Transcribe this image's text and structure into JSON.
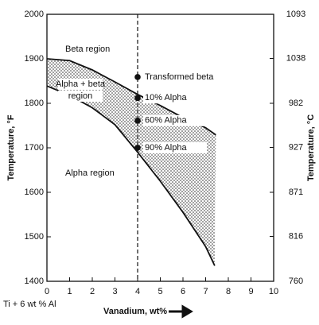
{
  "chart_data": {
    "type": "line",
    "xlabel": "Vanadium, wt%",
    "ylabel": "Temperature, °F",
    "y2label": "Temperature, °C",
    "note": "Ti + 6 wt % Al",
    "xlim": [
      0,
      10
    ],
    "xticks": [
      0,
      1,
      2,
      3,
      4,
      5,
      6,
      7,
      8,
      9,
      10
    ],
    "ylim": [
      1400,
      2000
    ],
    "yticks": [
      1400,
      1500,
      1600,
      1700,
      1800,
      1900,
      2000
    ],
    "y2lim": [
      760,
      1093
    ],
    "y2ticks": [
      760,
      816,
      871,
      927,
      982,
      1038,
      1093
    ],
    "color": "#111111",
    "series": [
      {
        "x": [
          0,
          1,
          2,
          3,
          4,
          5,
          6,
          7,
          7.45
        ],
        "values": [
          1900,
          1896,
          1875,
          1848,
          1820,
          1795,
          1768,
          1745,
          1729
        ]
      },
      {
        "x": [
          0,
          1,
          2,
          3,
          4,
          5,
          6,
          7,
          7.4
        ],
        "values": [
          1839,
          1818,
          1790,
          1752,
          1690,
          1625,
          1555,
          1478,
          1435
        ]
      }
    ],
    "vline": 4,
    "points": {
      "x": [
        4,
        4,
        4,
        4
      ],
      "values": [
        1859,
        1812,
        1761,
        1700
      ],
      "labels": [
        "Transformed beta",
        "10% Alpha",
        "60% Alpha",
        "90% Alpha"
      ]
    },
    "annotations": [
      "Beta region",
      "Alpha + beta",
      "region",
      "Alpha region"
    ]
  }
}
